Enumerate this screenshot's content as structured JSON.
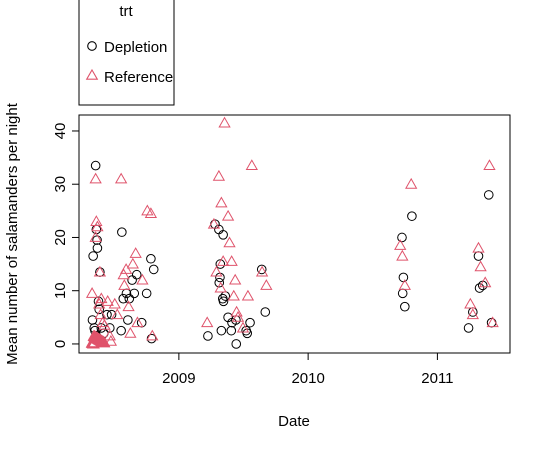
{
  "chart_data": {
    "type": "scatter",
    "title": "",
    "xlabel": "Date",
    "ylabel": "Mean number of salamanders per night",
    "x_ticks": [
      "2009",
      "2010",
      "2011"
    ],
    "y_ticks": [
      "0",
      "10",
      "20",
      "30",
      "40"
    ],
    "xlim": [
      "2008-03-25",
      "2011-07-25"
    ],
    "ylim": [
      -1.7,
      43
    ],
    "grid": false,
    "legend": {
      "title": "trt",
      "placement": "top-left, outside plot area"
    },
    "series": [
      {
        "name": "Depletion",
        "marker": "circle",
        "color": "#000000",
        "points": [
          [
            "2008-05-11",
            33.5
          ],
          [
            "2008-05-13",
            21.5
          ],
          [
            "2008-05-15",
            19.5
          ],
          [
            "2008-05-16",
            18.0
          ],
          [
            "2008-05-04",
            16.5
          ],
          [
            "2008-05-23",
            13.5
          ],
          [
            "2008-05-02",
            4.5
          ],
          [
            "2008-05-07",
            3.0
          ],
          [
            "2008-05-09",
            2.5
          ],
          [
            "2008-05-13",
            1.5
          ],
          [
            "2008-05-19",
            8.0
          ],
          [
            "2008-05-21",
            6.5
          ],
          [
            "2008-05-27",
            3.0
          ],
          [
            "2008-06-03",
            2.0
          ],
          [
            "2008-06-12",
            5.5
          ],
          [
            "2008-06-20",
            3.0
          ],
          [
            "2008-06-25",
            5.5
          ],
          [
            "2008-07-24",
            21.0
          ],
          [
            "2008-07-28",
            8.5
          ],
          [
            "2008-08-06",
            9.5
          ],
          [
            "2008-07-22",
            2.5
          ],
          [
            "2008-08-10",
            4.5
          ],
          [
            "2008-08-14",
            8.5
          ],
          [
            "2008-08-22",
            12.0
          ],
          [
            "2008-09-04",
            13.0
          ],
          [
            "2008-08-28",
            9.5
          ],
          [
            "2008-09-18",
            4.0
          ],
          [
            "2008-10-02",
            9.5
          ],
          [
            "2008-10-14",
            16.0
          ],
          [
            "2008-10-22",
            14.0
          ],
          [
            "2008-10-16",
            1.0
          ],
          [
            "2009-03-24",
            1.5
          ],
          [
            "2009-04-13",
            22.5
          ],
          [
            "2009-04-24",
            21.5
          ],
          [
            "2009-05-06",
            20.5
          ],
          [
            "2009-04-28",
            15.0
          ],
          [
            "2009-04-27",
            12.5
          ],
          [
            "2009-04-25",
            11.5
          ],
          [
            "2009-05-05",
            8.5
          ],
          [
            "2009-05-07",
            8.0
          ],
          [
            "2009-05-12",
            9.0
          ],
          [
            "2009-05-01",
            2.5
          ],
          [
            "2009-05-20",
            5.0
          ],
          [
            "2009-05-29",
            2.5
          ],
          [
            "2009-05-31",
            4.0
          ],
          [
            "2009-06-11",
            4.5
          ],
          [
            "2009-06-12",
            0.0
          ],
          [
            "2009-07-10",
            2.5
          ],
          [
            "2009-07-13",
            2.0
          ],
          [
            "2009-07-21",
            4.0
          ],
          [
            "2009-08-23",
            14.0
          ],
          [
            "2009-09-02",
            6.0
          ],
          [
            "2010-09-23",
            20.0
          ],
          [
            "2010-09-27",
            12.5
          ],
          [
            "2010-09-25",
            9.5
          ],
          [
            "2010-10-01",
            7.0
          ],
          [
            "2010-10-21",
            24.0
          ],
          [
            "2011-03-30",
            3.0
          ],
          [
            "2011-04-11",
            6.0
          ],
          [
            "2011-04-27",
            16.5
          ],
          [
            "2011-04-30",
            10.5
          ],
          [
            "2011-05-09",
            11.0
          ],
          [
            "2011-05-26",
            28.0
          ],
          [
            "2011-06-03",
            4.0
          ]
        ]
      },
      {
        "name": "Reference",
        "marker": "triangle",
        "color": "#df536b",
        "points": [
          [
            "2008-05-01",
            9.5
          ],
          [
            "2008-05-11",
            31.0
          ],
          [
            "2008-05-13",
            23.0
          ],
          [
            "2008-05-16",
            22.0
          ],
          [
            "2008-05-11",
            20.0
          ],
          [
            "2008-05-23",
            13.5
          ],
          [
            "2008-05-27",
            8.5
          ],
          [
            "2008-05-21",
            7.5
          ],
          [
            "2008-05-25",
            5.5
          ],
          [
            "2008-05-31",
            4.0
          ],
          [
            "2008-06-05",
            3.5
          ],
          [
            "2008-06-14",
            8.0
          ],
          [
            "2008-06-20",
            1.5
          ],
          [
            "2008-06-23",
            0.5
          ],
          [
            "2008-07-04",
            7.5
          ],
          [
            "2008-07-11",
            5.5
          ],
          [
            "2008-07-22",
            31.0
          ],
          [
            "2008-07-29",
            13.0
          ],
          [
            "2008-07-31",
            11.0
          ],
          [
            "2008-08-05",
            14.0
          ],
          [
            "2008-08-12",
            7.0
          ],
          [
            "2008-08-17",
            2.0
          ],
          [
            "2008-08-24",
            15.0
          ],
          [
            "2008-09-01",
            17.0
          ],
          [
            "2008-09-06",
            4.0
          ],
          [
            "2008-09-20",
            12.0
          ],
          [
            "2008-10-04",
            25.0
          ],
          [
            "2008-10-14",
            24.5
          ],
          [
            "2008-10-18",
            1.5
          ],
          [
            "2009-03-22",
            4.0
          ],
          [
            "2009-04-10",
            22.5
          ],
          [
            "2009-04-17",
            13.5
          ],
          [
            "2009-04-24",
            31.5
          ],
          [
            "2009-05-01",
            26.5
          ],
          [
            "2009-04-29",
            10.5
          ],
          [
            "2009-05-06",
            15.5
          ],
          [
            "2009-05-10",
            41.5
          ],
          [
            "2009-05-20",
            24.0
          ],
          [
            "2009-05-24",
            19.0
          ],
          [
            "2009-05-30",
            15.5
          ],
          [
            "2009-06-05",
            9.0
          ],
          [
            "2009-06-09",
            12.0
          ],
          [
            "2009-06-13",
            6.0
          ],
          [
            "2009-06-17",
            5.0
          ],
          [
            "2009-07-01",
            3.0
          ],
          [
            "2009-07-15",
            9.0
          ],
          [
            "2009-07-26",
            33.5
          ],
          [
            "2009-08-24",
            13.5
          ],
          [
            "2009-09-05",
            11.0
          ],
          [
            "2010-09-18",
            18.5
          ],
          [
            "2010-09-24",
            16.5
          ],
          [
            "2010-10-01",
            11.0
          ],
          [
            "2010-10-19",
            30.0
          ],
          [
            "2011-04-04",
            7.5
          ],
          [
            "2011-04-11",
            5.5
          ],
          [
            "2011-04-27",
            18.0
          ],
          [
            "2011-05-03",
            14.5
          ],
          [
            "2011-05-16",
            11.5
          ],
          [
            "2011-05-28",
            33.5
          ],
          [
            "2011-06-06",
            4.0
          ]
        ]
      }
    ],
    "cluster_near_zero": {
      "series": "Reference",
      "x_range": [
        "2008-05-01",
        "2008-06-05"
      ],
      "y_range": [
        0.0,
        1.5
      ],
      "approx_count": 40
    }
  }
}
